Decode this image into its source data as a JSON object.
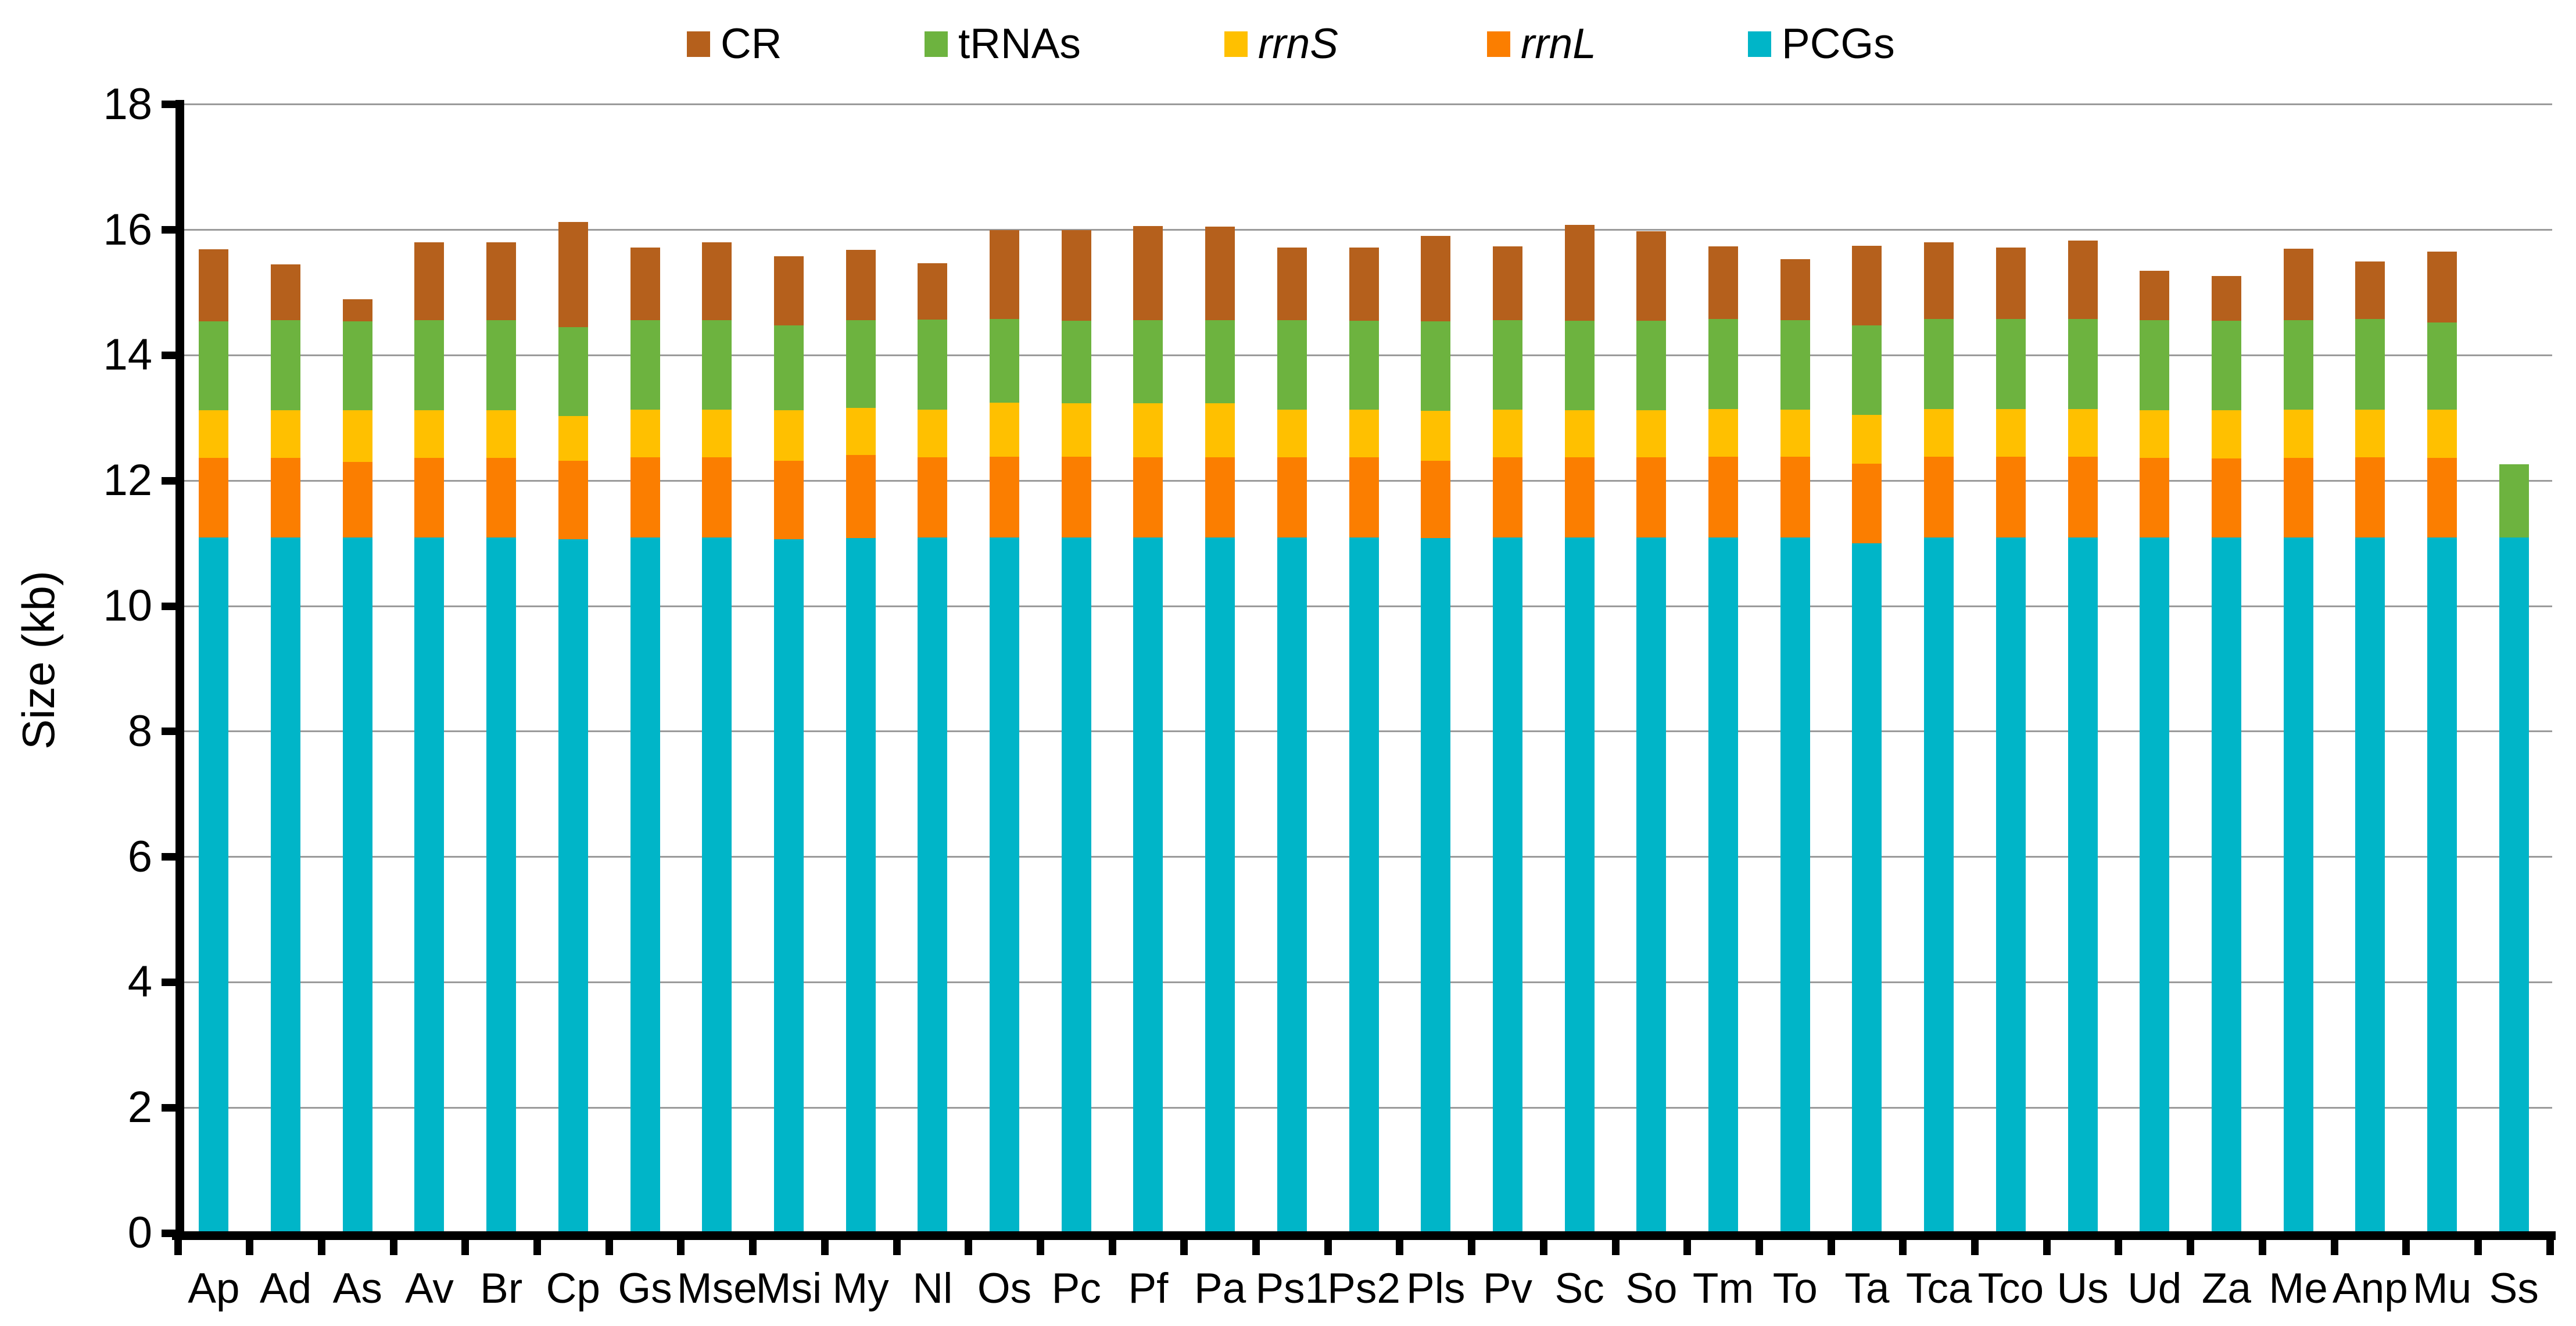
{
  "figure": {
    "background": "#FFFFFF"
  },
  "y_axis": {
    "title": "Size (kb)",
    "ticks": [
      0,
      2,
      4,
      6,
      8,
      10,
      12,
      14,
      16,
      18
    ],
    "min": 0,
    "max": 18
  },
  "legend": {
    "items": [
      {
        "label": "CR",
        "series": "CR",
        "italic": false
      },
      {
        "label": "tRNAs",
        "series": "tRNAs",
        "italic": false
      },
      {
        "label": "rrnS",
        "series": "rrnS",
        "italic": true
      },
      {
        "label": "rrnL",
        "series": "rrnL",
        "italic": true
      },
      {
        "label": "PCGs",
        "series": "PCGs",
        "italic": false
      }
    ]
  },
  "chart_data": {
    "type": "bar",
    "stacked": true,
    "title": "",
    "xlabel": "",
    "ylabel": "Size (kb)",
    "ylim": [
      0,
      18
    ],
    "grid": true,
    "legend_position": "top",
    "categories": [
      "Ap",
      "Ad",
      "As",
      "Av",
      "Br",
      "Cp",
      "Gs",
      "Mse",
      "Msi",
      "My",
      "Nl",
      "Os",
      "Pc",
      "Pf",
      "Pa",
      "Ps1",
      "Ps2",
      "Pls",
      "Pv",
      "Sc",
      "So",
      "Tm",
      "To",
      "Ta",
      "Tca",
      "Tco",
      "Us",
      "Ud",
      "Za",
      "Me",
      "Anp",
      "Mu",
      "Ss"
    ],
    "series": [
      {
        "name": "PCGs",
        "color": "#00B5C8",
        "values": [
          11.09,
          11.09,
          11.09,
          11.09,
          11.09,
          11.07,
          11.09,
          11.09,
          11.07,
          11.08,
          11.09,
          11.09,
          11.09,
          11.09,
          11.09,
          11.09,
          11.09,
          11.08,
          11.09,
          11.09,
          11.09,
          11.09,
          11.09,
          11.0,
          11.09,
          11.09,
          11.09,
          11.09,
          11.09,
          11.09,
          11.09,
          11.09,
          11.09
        ]
      },
      {
        "name": "rrnL",
        "color": "#FB7E00",
        "values": [
          1.27,
          1.27,
          1.21,
          1.27,
          1.27,
          1.25,
          1.28,
          1.28,
          1.25,
          1.33,
          1.28,
          1.29,
          1.29,
          1.28,
          1.28,
          1.28,
          1.28,
          1.24,
          1.28,
          1.28,
          1.28,
          1.29,
          1.29,
          1.27,
          1.29,
          1.29,
          1.29,
          1.27,
          1.26,
          1.27,
          1.28,
          1.27,
          0
        ]
      },
      {
        "name": "rrnS",
        "color": "#FFC000",
        "values": [
          0.76,
          0.76,
          0.82,
          0.76,
          0.76,
          0.71,
          0.76,
          0.76,
          0.8,
          0.75,
          0.76,
          0.86,
          0.85,
          0.86,
          0.86,
          0.76,
          0.76,
          0.79,
          0.76,
          0.75,
          0.75,
          0.76,
          0.75,
          0.78,
          0.76,
          0.76,
          0.76,
          0.76,
          0.77,
          0.77,
          0.76,
          0.77,
          0
        ]
      },
      {
        "name": "tRNAs",
        "color": "#6DB33F",
        "values": [
          1.42,
          1.44,
          1.42,
          1.44,
          1.44,
          1.42,
          1.43,
          1.43,
          1.36,
          1.4,
          1.44,
          1.34,
          1.32,
          1.33,
          1.33,
          1.43,
          1.42,
          1.43,
          1.43,
          1.43,
          1.43,
          1.44,
          1.43,
          1.43,
          1.44,
          1.44,
          1.44,
          1.44,
          1.43,
          1.43,
          1.45,
          1.39,
          1.17
        ]
      },
      {
        "name": "CR",
        "color": "#B5601C",
        "values": [
          1.15,
          0.89,
          0.35,
          1.24,
          1.24,
          1.68,
          1.16,
          1.24,
          1.1,
          1.12,
          0.9,
          1.42,
          1.45,
          1.5,
          1.49,
          1.16,
          1.17,
          1.36,
          1.18,
          1.53,
          1.43,
          1.16,
          0.97,
          1.27,
          1.22,
          1.14,
          1.25,
          0.79,
          0.71,
          1.14,
          0.92,
          1.13,
          0
        ]
      }
    ],
    "colors": {
      "axis": "#000000",
      "gridline": "#9B9B9B",
      "background": "#FFFFFF"
    }
  }
}
